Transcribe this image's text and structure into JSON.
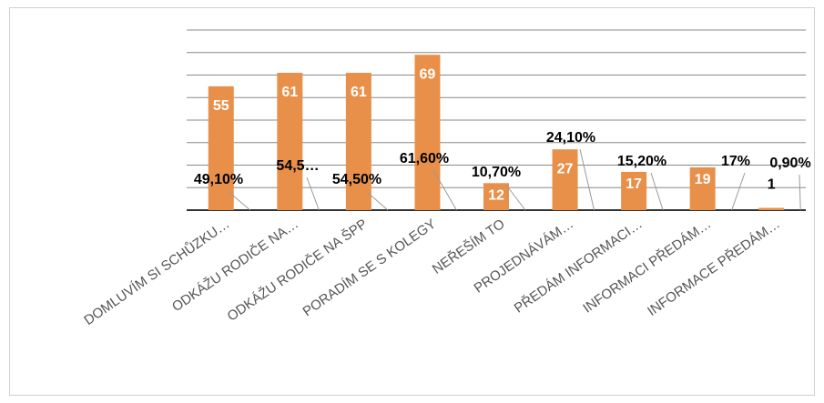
{
  "chart_data": {
    "type": "bar",
    "categories": [
      "DOMLUVÍM SI SCHŮZKU…",
      "ODKÁŽU RODIČE NA…",
      "ODKÁŽU RODIČE NA ŠPP",
      "PORADÍM SE S KOLEGY",
      "NEŘEŠÍM TO",
      "PROJEDNÁVÁM…",
      "PŘEDÁM INFORMACI…",
      "INFORMACI PŘEDÁM…",
      "INFORMACE PŘEDÁM…"
    ],
    "values": [
      55,
      61,
      61,
      69,
      12,
      27,
      17,
      19,
      1
    ],
    "percent_labels": [
      "49,10%",
      "54,5…",
      "54,50%",
      "61,60%",
      "10,70%",
      "24,10%",
      "15,20%",
      "17%",
      "0,90%"
    ],
    "color": "#e8904a",
    "ylim": [
      0,
      80
    ],
    "yticks": [
      0,
      10,
      20,
      30,
      40,
      50,
      60,
      70,
      80
    ],
    "grid": true
  }
}
